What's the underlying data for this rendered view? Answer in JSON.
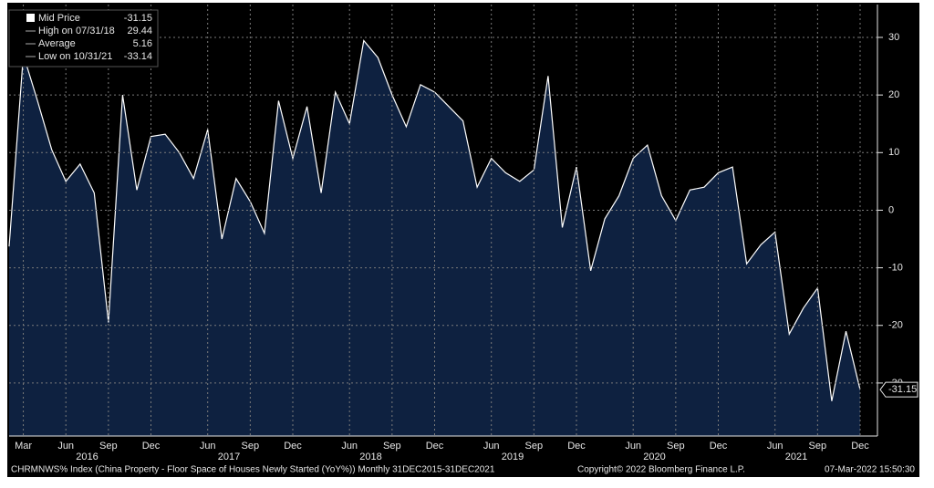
{
  "chart_data": {
    "type": "area",
    "categories": [
      null,
      "Mar",
      null,
      null,
      "Jun",
      null,
      null,
      "Sep",
      null,
      null,
      "Dec",
      null,
      null,
      null,
      "Jun",
      null,
      null,
      "Sep",
      null,
      null,
      "Dec",
      null,
      null,
      null,
      "Jun",
      null,
      null,
      "Sep",
      null,
      null,
      "Dec",
      null,
      null,
      null,
      "Jun",
      null,
      null,
      "Sep",
      null,
      null,
      "Dec",
      null,
      null,
      null,
      "Jun",
      null,
      null,
      "Sep",
      null,
      null,
      "Dec",
      null,
      null,
      null,
      "Jun",
      null,
      null,
      "Sep",
      null,
      null,
      "Dec"
    ],
    "years": [
      "2016",
      "2017",
      "2018",
      "2019",
      "2020",
      "2021"
    ],
    "values": [
      -6.3,
      27,
      19,
      10.5,
      5,
      8,
      3,
      -19.5,
      20,
      3.5,
      12.8,
      13.2,
      10,
      5.5,
      14,
      -5,
      5.5,
      1.5,
      -4,
      19,
      9,
      18,
      3,
      20.5,
      15,
      29.44,
      26.5,
      20,
      14.5,
      21.8,
      20.5,
      18,
      15.5,
      4,
      9,
      6.5,
      5,
      7,
      23.3,
      -3,
      7.5,
      -10.5,
      -1.5,
      2.5,
      9,
      11.3,
      2.5,
      -1.8,
      3.5,
      4,
      6.5,
      7.5,
      -9.3,
      -6,
      -3.8,
      -21.5,
      -17,
      -13.5,
      -33.14,
      -21,
      -31.15
    ],
    "color": "#ffffff",
    "fill": "#0e2140",
    "ylim": [
      -39.2,
      35.7
    ],
    "yticks": [
      -30,
      -20,
      -10,
      0,
      10,
      20,
      30
    ],
    "grid": true,
    "legend": [
      {
        "label": "Mid Price",
        "value": -31.15
      },
      {
        "label": "High on 07/31/18",
        "value": 29.44
      },
      {
        "label": "Average",
        "value": 5.16
      },
      {
        "label": "Low on 10/31/21",
        "value": -33.14
      }
    ],
    "footer": {
      "description": "CHRMNWS% Index (China Property - Floor Space of Houses Newly Started (YoY%)) Monthly 31DEC2015-31DEC2021",
      "copyright": "Copyright© 2022 Bloomberg Finance L.P.",
      "timestamp": "07-Mar-2022 15:50:30"
    }
  }
}
